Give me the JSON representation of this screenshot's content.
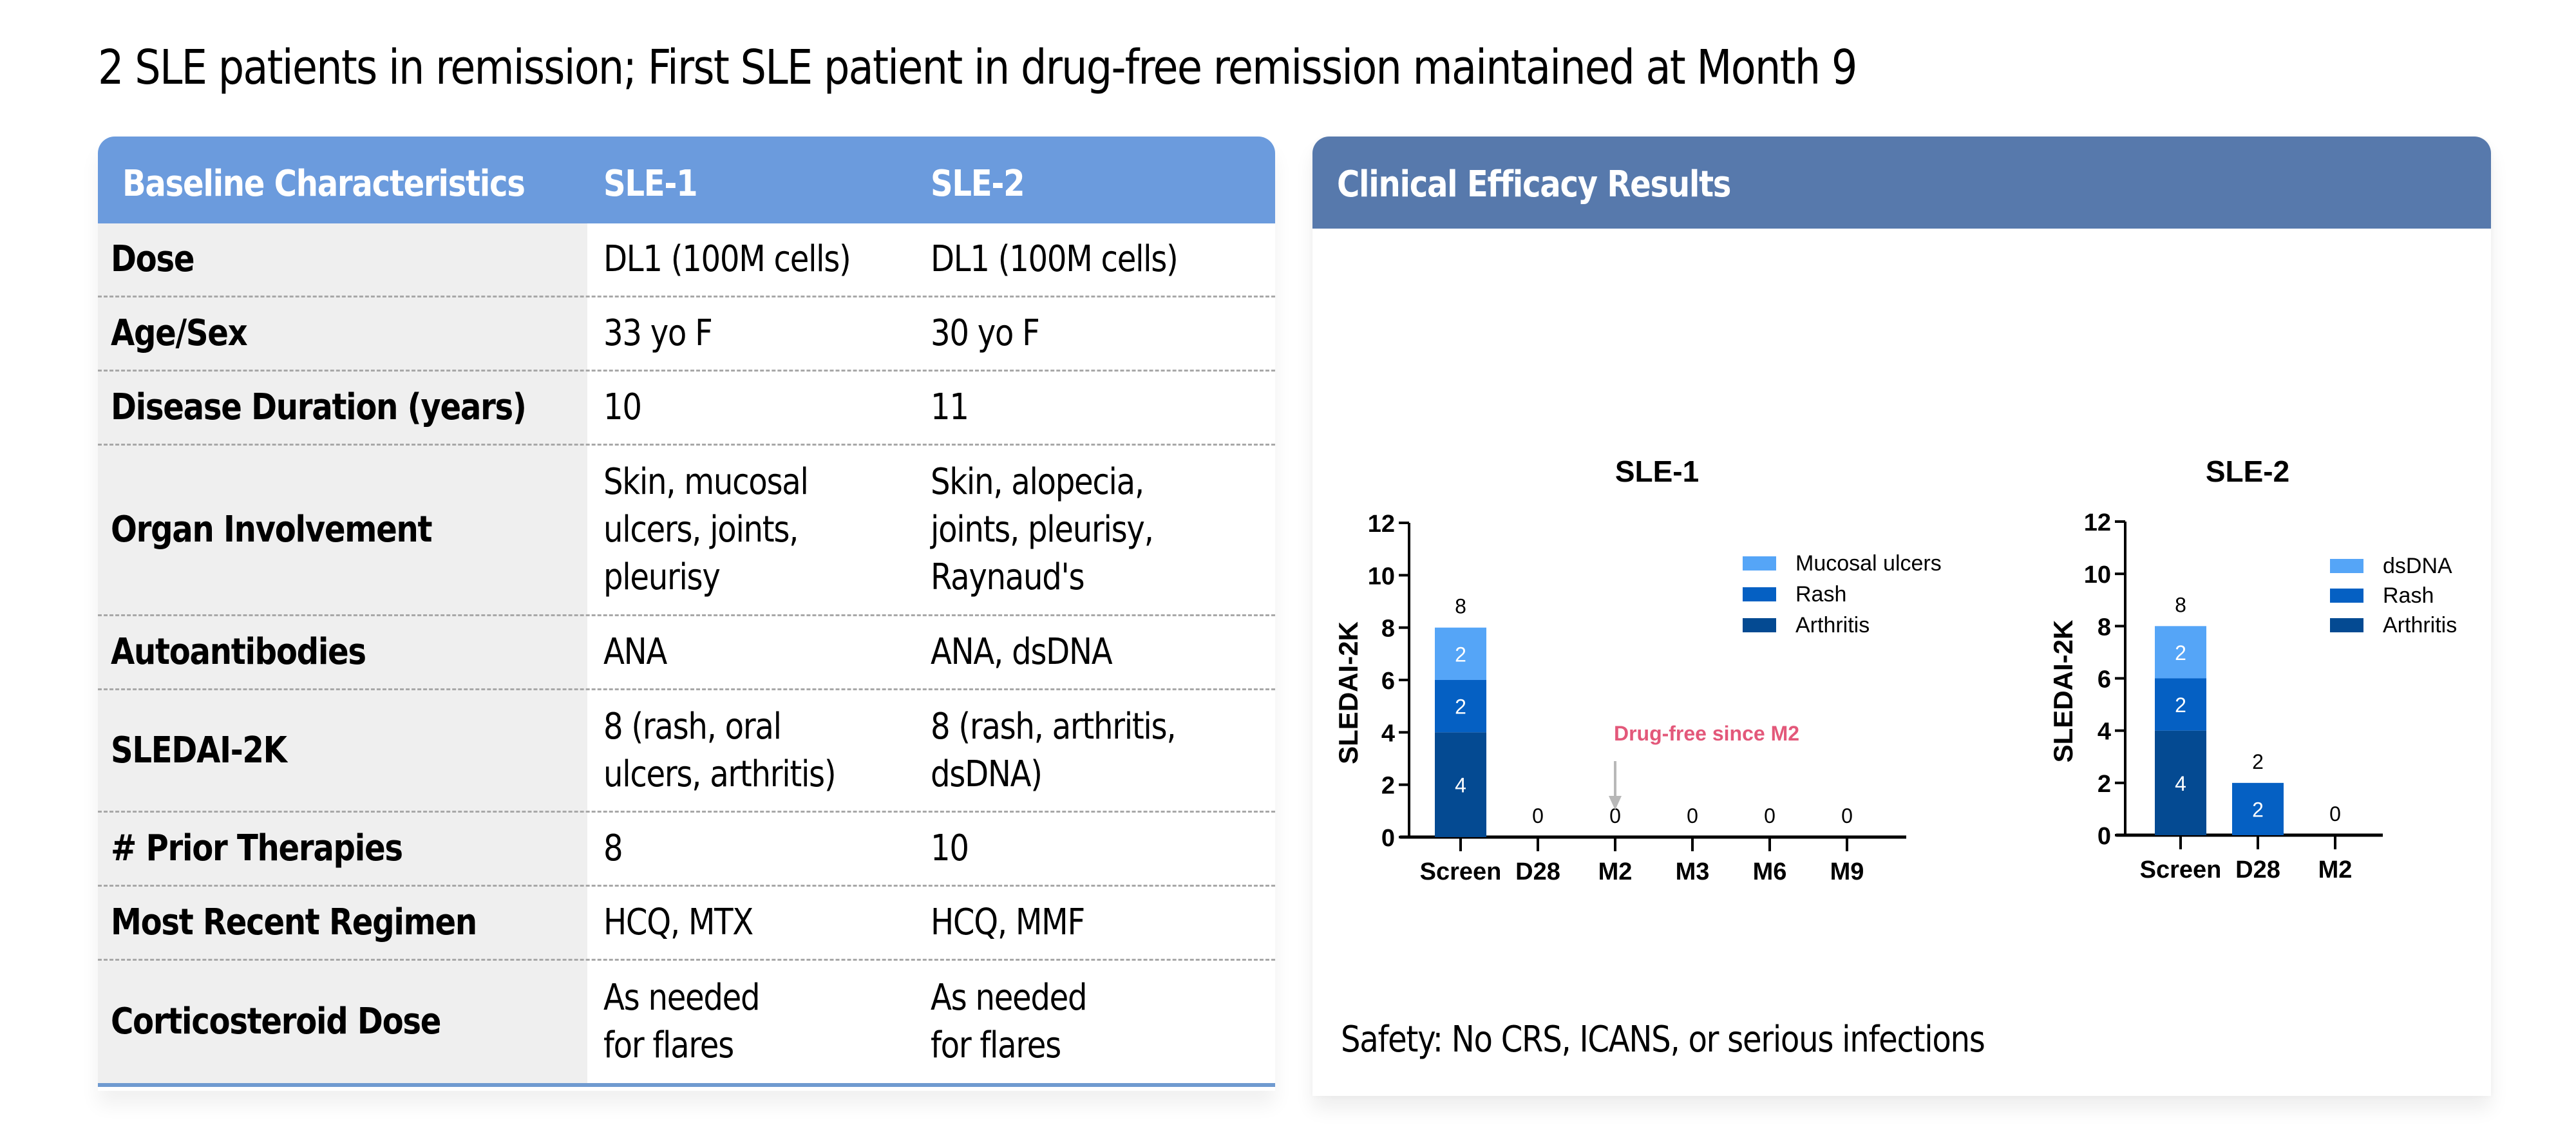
{
  "page": {
    "title": "2 SLE patients in remission; First SLE patient in drug-free remission maintained at Month 9"
  },
  "table": {
    "headers": [
      "Baseline Characteristics",
      "SLE-1",
      "SLE-2"
    ],
    "rows": [
      {
        "label": "Dose",
        "sle1": "DL1 (100M cells)",
        "sle2": "DL1 (100M cells)"
      },
      {
        "label": "Age/Sex",
        "sle1": "33 yo F",
        "sle2": "30 yo F"
      },
      {
        "label": "Disease Duration (years)",
        "sle1": "10",
        "sle2": "11"
      },
      {
        "label": "Organ Involvement",
        "sle1": "Skin, mucosal\nulcers, joints,\npleurisy",
        "sle2": "Skin, alopecia,\njoints, pleurisy,\nRaynaud's"
      },
      {
        "label": "Autoantibodies",
        "sle1": "ANA",
        "sle2": "ANA, dsDNA"
      },
      {
        "label": "SLEDAI-2K",
        "sle1": "8 (rash, oral\nulcers, arthritis)",
        "sle2": "8 (rash, arthritis,\ndsDNA)"
      },
      {
        "label": "# Prior Therapies",
        "sle1": "8",
        "sle2": "10"
      },
      {
        "label": "Most Recent Regimen",
        "sle1": "HCQ, MTX",
        "sle2": "HCQ, MMF"
      },
      {
        "label": "Corticosteroid Dose",
        "sle1": "As needed\nfor flares",
        "sle2": "As needed\nfor flares"
      }
    ]
  },
  "efficacy": {
    "title": "Clinical Efficacy Results",
    "safety_text": "Safety: No CRS, ICANS, or serious infections"
  },
  "colors": {
    "table_header": "#6b9bdd",
    "efficacy_header": "#5779ac",
    "light_blue": "#55a5f7",
    "mid_blue": "#0560c3",
    "dark_blue": "#044a92",
    "annotation": "#e3587a",
    "arrow": "#b8b8b8"
  },
  "chart_data": [
    {
      "type": "bar",
      "stacked": true,
      "title": "SLE-1",
      "xlabel": "",
      "ylabel": "SLEDAI-2K",
      "ylim": [
        0,
        12
      ],
      "yticks": [
        0,
        2,
        4,
        6,
        8,
        10,
        12
      ],
      "categories": [
        "Screen",
        "D28",
        "M2",
        "M3",
        "M6",
        "M9"
      ],
      "series": [
        {
          "name": "Arthritis",
          "color": "#044a92",
          "values": [
            4,
            0,
            0,
            0,
            0,
            0
          ]
        },
        {
          "name": "Rash",
          "color": "#0560c3",
          "values": [
            2,
            0,
            0,
            0,
            0,
            0
          ]
        },
        {
          "name": "Mucosal ulcers",
          "color": "#55a5f7",
          "values": [
            2,
            0,
            0,
            0,
            0,
            0
          ]
        }
      ],
      "totals": [
        8,
        0,
        0,
        0,
        0,
        0
      ],
      "legend": [
        "Mucosal ulcers",
        "Rash",
        "Arthritis"
      ],
      "legend_position": "top-right",
      "annotation": {
        "text": "Drug-free since M2",
        "target_category": "M2"
      }
    },
    {
      "type": "bar",
      "stacked": true,
      "title": "SLE-2",
      "xlabel": "",
      "ylabel": "SLEDAI-2K",
      "ylim": [
        0,
        12
      ],
      "yticks": [
        0,
        2,
        4,
        6,
        8,
        10,
        12
      ],
      "categories": [
        "Screen",
        "D28",
        "M2"
      ],
      "series": [
        {
          "name": "Arthritis",
          "color": "#044a92",
          "values": [
            4,
            0,
            0
          ]
        },
        {
          "name": "Rash",
          "color": "#0560c3",
          "values": [
            2,
            2,
            0
          ]
        },
        {
          "name": "dsDNA",
          "color": "#55a5f7",
          "values": [
            2,
            0,
            0
          ]
        }
      ],
      "totals": [
        8,
        2,
        0
      ],
      "legend": [
        "dsDNA",
        "Rash",
        "Arthritis"
      ],
      "legend_position": "top-right"
    }
  ]
}
